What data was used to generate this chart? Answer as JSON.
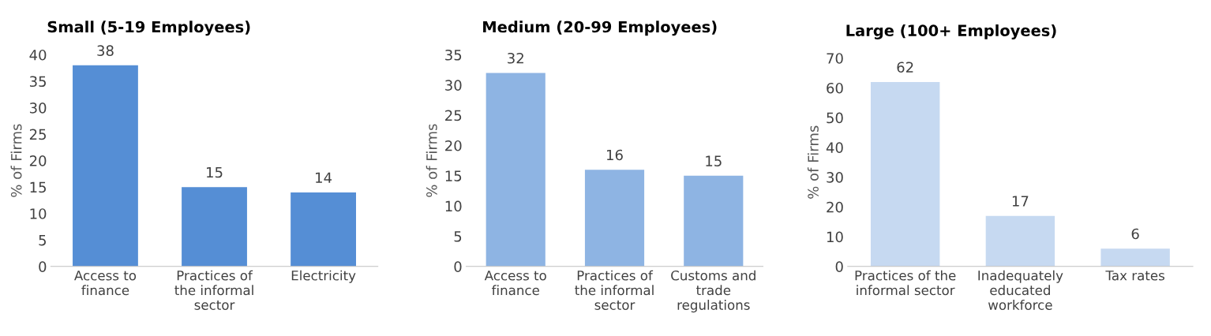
{
  "chart_data": [
    {
      "type": "bar",
      "title": "Small (5-19 Employees)",
      "ylabel": "% of Firms",
      "categories": [
        "Access to\nfinance",
        "Practices of\nthe informal\nsector",
        "Electricity"
      ],
      "values": [
        38,
        15,
        14
      ],
      "color": "#558ed5",
      "ylim": [
        0,
        40
      ],
      "yticks": [
        0,
        5,
        10,
        15,
        20,
        25,
        30,
        35,
        40
      ],
      "data_labels": true
    },
    {
      "type": "bar",
      "title": "Medium (20-99 Employees)",
      "ylabel": "% of Firms",
      "categories": [
        "Access to\nfinance",
        "Practices of\nthe informal\nsector",
        "Customs and\ntrade\nregulations"
      ],
      "values": [
        32,
        16,
        15
      ],
      "color": "#8eb4e3",
      "ylim": [
        0,
        35
      ],
      "yticks": [
        0,
        5,
        10,
        15,
        20,
        25,
        30,
        35
      ],
      "data_labels": true
    },
    {
      "type": "bar",
      "title": "Large (100+ Employees)",
      "ylabel": "% of Firms",
      "categories": [
        "Practices of the\ninformal sector",
        "Inadequately\neducated\nworkforce",
        "Tax rates"
      ],
      "values": [
        62,
        17,
        6
      ],
      "color": "#c6d9f1",
      "ylim": [
        0,
        70
      ],
      "yticks": [
        0,
        10,
        20,
        30,
        40,
        50,
        60,
        70
      ],
      "data_labels": true
    }
  ]
}
